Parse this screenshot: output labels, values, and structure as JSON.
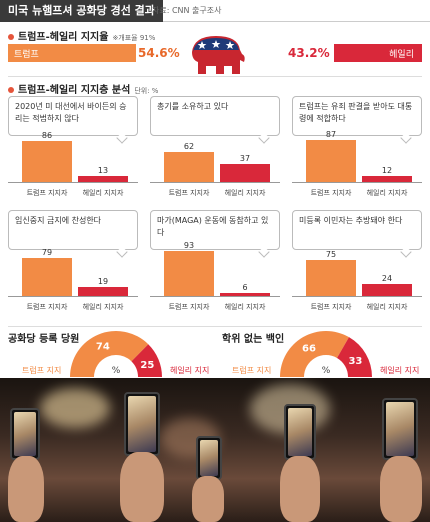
{
  "header": {
    "title": "미국 뉴햄프셔 공화당 경선 결과",
    "source": "자료: CNN 출구조사"
  },
  "support": {
    "title": "트럼프-헤일리 지지율",
    "note": "※개표율 91%",
    "trump": {
      "name": "트럼프",
      "pct": "54.6%",
      "value": 54.6
    },
    "haley": {
      "name": "헤일리",
      "pct": "43.2%",
      "value": 43.2
    },
    "logo_icon": "republican-elephant-icon"
  },
  "breakdown": {
    "title": "트럼프-헤일리 지지층 분석",
    "unit": "단위: %",
    "trump_label": "트럼프 지지자",
    "haley_label": "헤일리 지지자"
  },
  "chart_data": [
    {
      "type": "bar",
      "title": "2020년 미 대선에서 바이든의 승리는 적법하지 않다",
      "categories": [
        "트럼프 지지자",
        "헤일리 지지자"
      ],
      "values": [
        86,
        13
      ],
      "ylim": [
        0,
        100
      ]
    },
    {
      "type": "bar",
      "title": "총기를 소유하고 있다",
      "categories": [
        "트럼프 지지자",
        "헤일리 지지자"
      ],
      "values": [
        62,
        37
      ],
      "ylim": [
        0,
        100
      ]
    },
    {
      "type": "bar",
      "title": "트럼프는 유죄 판결을 받아도 대통령에 적합하다",
      "categories": [
        "트럼프 지지자",
        "헤일리 지지자"
      ],
      "values": [
        87,
        12
      ],
      "ylim": [
        0,
        100
      ]
    },
    {
      "type": "bar",
      "title": "임신중지 금지에 찬성한다",
      "categories": [
        "트럼프 지지자",
        "헤일리 지지자"
      ],
      "values": [
        79,
        19
      ],
      "ylim": [
        0,
        100
      ]
    },
    {
      "type": "bar",
      "title": "마가(MAGA) 운동에 동참하고 있다",
      "categories": [
        "트럼프 지지자",
        "헤일리 지지자"
      ],
      "values": [
        93,
        6
      ],
      "ylim": [
        0,
        100
      ]
    },
    {
      "type": "bar",
      "title": "미등록 이민자는 추방돼야 한다",
      "categories": [
        "트럼프 지지자",
        "헤일리 지지자"
      ],
      "values": [
        75,
        24
      ],
      "ylim": [
        0,
        100
      ]
    },
    {
      "type": "pie",
      "title": "공화당 등록 당원",
      "categories": [
        "트럼프 지지",
        "헤일리 지지"
      ],
      "values": [
        74,
        25
      ],
      "center_label": "%"
    },
    {
      "type": "pie",
      "title": "학위 없는 백인",
      "categories": [
        "트럼프 지지",
        "헤일리 지지"
      ],
      "values": [
        66,
        33
      ],
      "center_label": "%"
    }
  ],
  "colors": {
    "trump": "#f28b45",
    "haley": "#d9283a"
  }
}
